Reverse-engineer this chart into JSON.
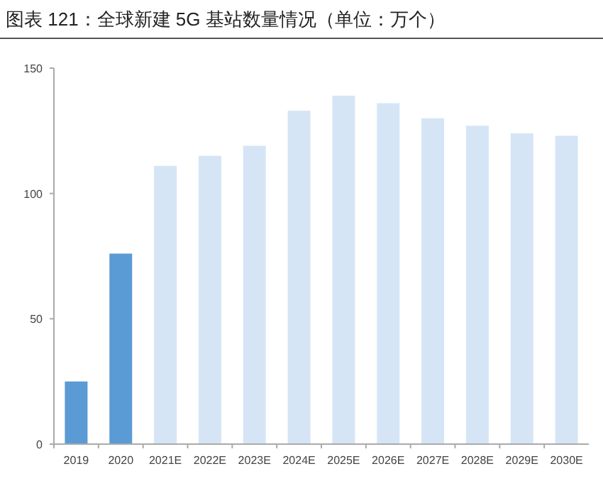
{
  "chart_data": {
    "type": "bar",
    "title": "图表 121：全球新建 5G 基站数量情况（单位：万个）",
    "categories": [
      "2019",
      "2020",
      "2021E",
      "2022E",
      "2023E",
      "2024E",
      "2025E",
      "2026E",
      "2027E",
      "2028E",
      "2029E",
      "2030E"
    ],
    "values": [
      25,
      76,
      111,
      115,
      119,
      133,
      139,
      136,
      130,
      127,
      124,
      123
    ],
    "colors": [
      "#5b9bd5",
      "#5b9bd5",
      "#d5e5f5",
      "#d5e5f5",
      "#d5e5f5",
      "#d5e5f5",
      "#d5e5f5",
      "#d5e5f5",
      "#d5e5f5",
      "#d5e5f5",
      "#d5e5f5",
      "#d5e5f5"
    ],
    "ylim": [
      0,
      150
    ],
    "yticks": [
      0,
      50,
      100,
      150
    ]
  }
}
